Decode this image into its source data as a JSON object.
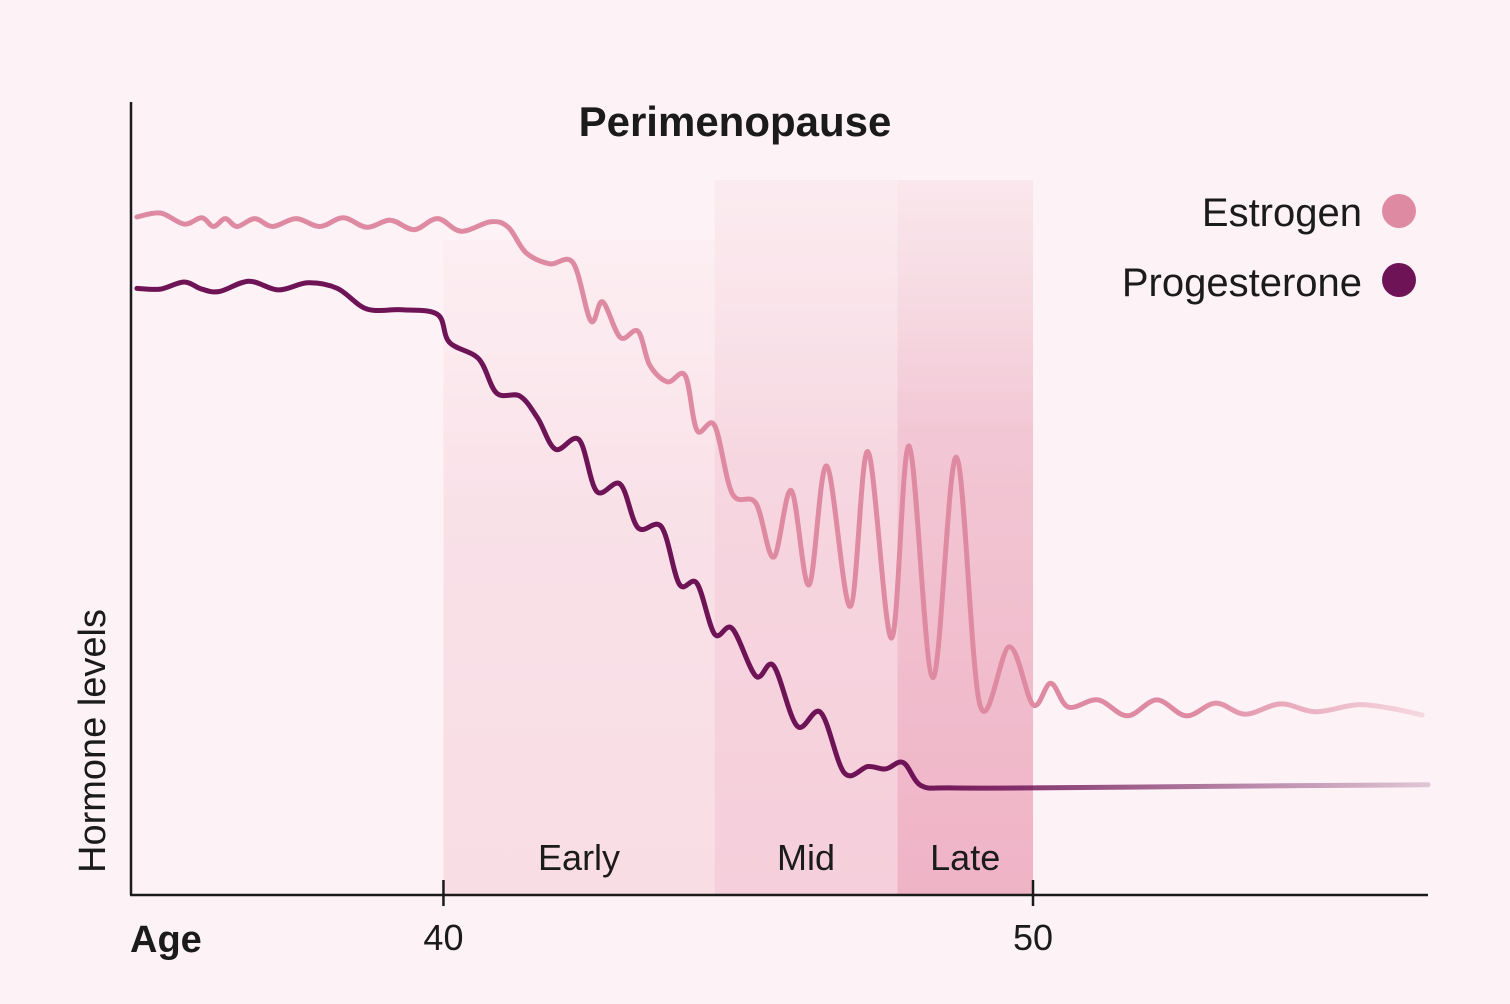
{
  "chart_data": {
    "type": "line",
    "title": "Perimenopause",
    "xlabel": "Age",
    "ylabel": "Hormone levels",
    "xlim": [
      34.7,
      56.7
    ],
    "ylim": [
      0,
      100
    ],
    "x_ticks": [
      {
        "value": 40,
        "label": "40"
      },
      {
        "value": 50,
        "label": "50"
      }
    ],
    "grid": false,
    "legend_position": "top-right",
    "phases": [
      {
        "label": "Early",
        "start": 40,
        "end": 44.6,
        "color": "#f9dde5"
      },
      {
        "label": "Mid",
        "start": 44.6,
        "end": 47.7,
        "color": "#f5cfdb"
      },
      {
        "label": "Late",
        "start": 47.7,
        "end": 50,
        "color": "#efb3c6"
      }
    ],
    "series": [
      {
        "name": "Estrogen",
        "color": "#df8aa3",
        "points": [
          [
            34.8,
            85.5
          ],
          [
            35.2,
            86.0
          ],
          [
            35.6,
            84.6
          ],
          [
            35.9,
            85.4
          ],
          [
            36.1,
            84.3
          ],
          [
            36.3,
            85.3
          ],
          [
            36.5,
            84.3
          ],
          [
            36.8,
            85.3
          ],
          [
            37.1,
            84.3
          ],
          [
            37.5,
            85.3
          ],
          [
            37.9,
            84.3
          ],
          [
            38.3,
            85.4
          ],
          [
            38.7,
            84.2
          ],
          [
            39.1,
            85.1
          ],
          [
            39.5,
            83.9
          ],
          [
            39.9,
            85.3
          ],
          [
            40.3,
            83.7
          ],
          [
            40.8,
            84.9
          ],
          [
            41.1,
            84.2
          ],
          [
            41.4,
            81.0
          ],
          [
            41.8,
            79.6
          ],
          [
            42.2,
            79.7
          ],
          [
            42.5,
            72.4
          ],
          [
            42.7,
            74.8
          ],
          [
            43.0,
            70.3
          ],
          [
            43.3,
            71.1
          ],
          [
            43.5,
            66.8
          ],
          [
            43.8,
            64.7
          ],
          [
            44.1,
            65.5
          ],
          [
            44.3,
            58.6
          ],
          [
            44.6,
            59.2
          ],
          [
            44.9,
            50.6
          ],
          [
            45.3,
            49.4
          ],
          [
            45.6,
            42.6
          ],
          [
            45.9,
            51.0
          ],
          [
            46.2,
            39.1
          ],
          [
            46.5,
            54.1
          ],
          [
            46.9,
            36.4
          ],
          [
            47.2,
            55.9
          ],
          [
            47.6,
            32.4
          ],
          [
            47.9,
            56.6
          ],
          [
            48.3,
            27.4
          ],
          [
            48.7,
            55.2
          ],
          [
            49.1,
            24.0
          ],
          [
            49.6,
            31.3
          ],
          [
            50.0,
            24.0
          ],
          [
            50.3,
            26.7
          ],
          [
            50.6,
            23.7
          ],
          [
            51.1,
            24.6
          ],
          [
            51.6,
            22.6
          ],
          [
            52.1,
            24.6
          ],
          [
            52.6,
            22.6
          ],
          [
            53.1,
            24.2
          ],
          [
            53.6,
            22.8
          ],
          [
            54.2,
            24.1
          ],
          [
            54.8,
            23.1
          ],
          [
            55.5,
            24.0
          ],
          [
            56.1,
            23.5
          ],
          [
            56.6,
            22.7
          ]
        ]
      },
      {
        "name": "Progesterone",
        "color": "#6e1456",
        "points": [
          [
            34.8,
            76.5
          ],
          [
            35.2,
            76.4
          ],
          [
            35.6,
            77.3
          ],
          [
            35.9,
            76.4
          ],
          [
            36.2,
            76.1
          ],
          [
            36.7,
            77.4
          ],
          [
            37.2,
            76.3
          ],
          [
            37.7,
            77.2
          ],
          [
            38.2,
            76.5
          ],
          [
            38.7,
            73.9
          ],
          [
            39.3,
            73.8
          ],
          [
            39.9,
            73.2
          ],
          [
            40.1,
            69.7
          ],
          [
            40.6,
            67.6
          ],
          [
            40.9,
            63.3
          ],
          [
            41.3,
            62.9
          ],
          [
            41.6,
            60.1
          ],
          [
            41.9,
            56.2
          ],
          [
            42.3,
            57.4
          ],
          [
            42.6,
            50.9
          ],
          [
            43.0,
            51.8
          ],
          [
            43.3,
            46.3
          ],
          [
            43.7,
            46.4
          ],
          [
            44.0,
            39.2
          ],
          [
            44.3,
            39.3
          ],
          [
            44.6,
            32.9
          ],
          [
            44.9,
            33.6
          ],
          [
            45.3,
            27.6
          ],
          [
            45.6,
            28.9
          ],
          [
            46.0,
            21.3
          ],
          [
            46.4,
            23.0
          ],
          [
            46.8,
            15.4
          ],
          [
            47.2,
            16.2
          ],
          [
            47.5,
            15.9
          ],
          [
            47.8,
            16.7
          ],
          [
            48.1,
            13.8
          ],
          [
            48.6,
            13.5
          ],
          [
            50.0,
            13.5
          ],
          [
            53.0,
            13.7
          ],
          [
            56.7,
            13.9
          ]
        ]
      }
    ]
  }
}
